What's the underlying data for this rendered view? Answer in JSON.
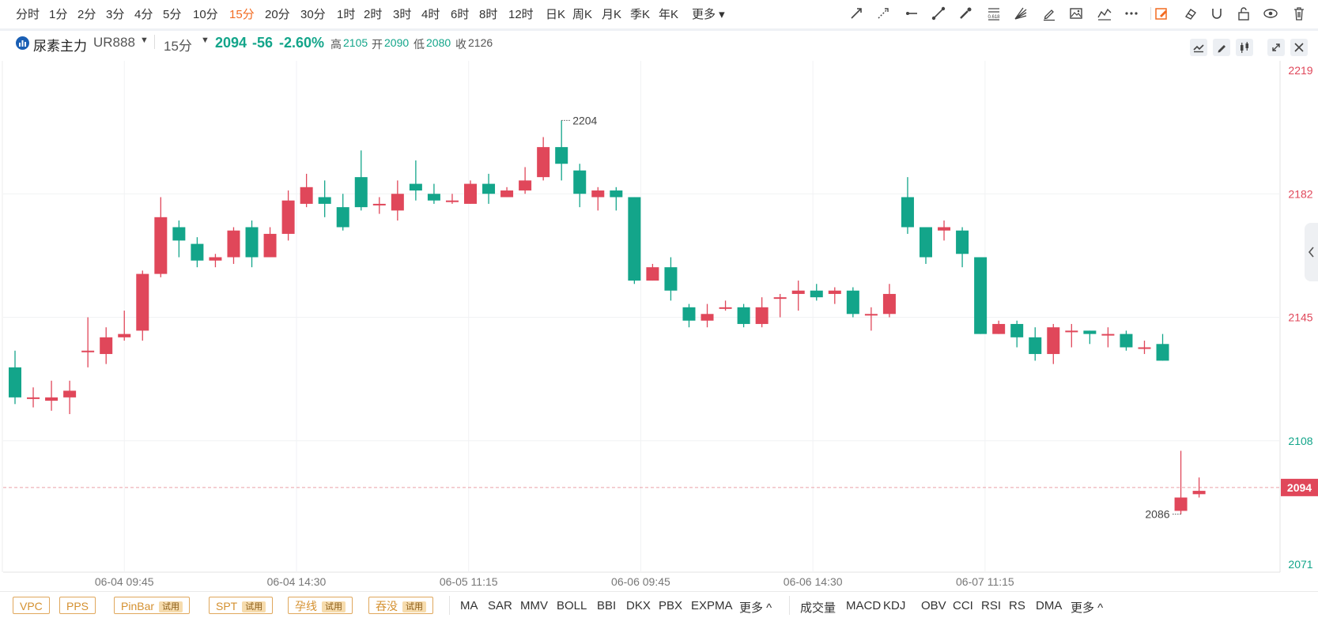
{
  "periods": [
    "分时",
    "1分",
    "2分",
    "3分",
    "4分",
    "5分",
    "10分",
    "15分",
    "20分",
    "30分",
    "1时",
    "2时",
    "3时",
    "4时",
    "6时",
    "8时",
    "12时",
    "日K",
    "周K",
    "月K",
    "季K",
    "年K",
    "更多"
  ],
  "active_period": "15分",
  "toolbar_icons": [
    "trend-line-icon",
    "dashed-ray-icon",
    "horizontal-ray-icon",
    "line-segment-icon",
    "brush-icon",
    "fibonacci-icon",
    "gann-fan-icon",
    "pencil-icon",
    "image-icon",
    "wave-icon",
    "more-tools-icon",
    "edit-mode-icon",
    "eraser-icon",
    "magnet-icon",
    "lock-icon",
    "eye-icon",
    "trash-icon"
  ],
  "fib_label": "0.618",
  "info": {
    "symbol_name": "尿素主力",
    "symbol_code": "UR888",
    "period": "15分",
    "price": "2094",
    "change": "-56",
    "change_pct": "-2.60%",
    "high_label": "高",
    "high": "2105",
    "open_label": "开",
    "open": "2090",
    "low_label": "低",
    "low": "2080",
    "close_label": "收",
    "close": "2126"
  },
  "colors": {
    "up": "#e0475a",
    "down": "#13a58a",
    "active": "#f26b21",
    "grid": "#f1f2f4"
  },
  "chart_data": {
    "type": "candlestick",
    "ylim": [
      2071,
      2219
    ],
    "y_ticks": [
      2219,
      2182,
      2145,
      2108,
      2071
    ],
    "x_tick_labels": [
      "06-04 09:45",
      "06-04 14:30",
      "06-05 11:15",
      "06-06 09:45",
      "06-06 14:30",
      "06-07 11:15"
    ],
    "current_price": 2094,
    "annotations": {
      "max": "2204",
      "min": "2086"
    },
    "candles": [
      [
        2130,
        2121,
        2135,
        2119
      ],
      [
        2121,
        2121,
        2124,
        2118
      ],
      [
        2120,
        2121,
        2126,
        2117
      ],
      [
        2121,
        2123,
        2126,
        2116
      ],
      [
        2135,
        2135,
        2145,
        2130
      ],
      [
        2134,
        2139,
        2142,
        2131
      ],
      [
        2139,
        2140,
        2147,
        2138
      ],
      [
        2141,
        2158,
        2159,
        2138
      ],
      [
        2158,
        2175,
        2181,
        2157
      ],
      [
        2172,
        2168,
        2174,
        2163
      ],
      [
        2167,
        2162,
        2169,
        2160
      ],
      [
        2162,
        2163,
        2164,
        2160
      ],
      [
        2163,
        2171,
        2172,
        2161
      ],
      [
        2172,
        2163,
        2174,
        2160
      ],
      [
        2163,
        2170,
        2172,
        2163
      ],
      [
        2170,
        2180,
        2183,
        2168
      ],
      [
        2179,
        2184,
        2188,
        2178
      ],
      [
        2181,
        2179,
        2186,
        2175
      ],
      [
        2178,
        2172,
        2182,
        2171
      ],
      [
        2187,
        2178,
        2195,
        2177
      ],
      [
        2179,
        2179,
        2181,
        2176
      ],
      [
        2177,
        2182,
        2186,
        2174
      ],
      [
        2185,
        2183,
        2192,
        2180
      ],
      [
        2182,
        2180,
        2185,
        2179
      ],
      [
        2180,
        2180,
        2182,
        2179
      ],
      [
        2179,
        2185,
        2186,
        2179
      ],
      [
        2185,
        2182,
        2188,
        2179
      ],
      [
        2181,
        2183,
        2184,
        2181
      ],
      [
        2183,
        2186,
        2190,
        2182
      ],
      [
        2187,
        2196,
        2199,
        2186
      ],
      [
        2196,
        2191,
        2204,
        2186
      ],
      [
        2189,
        2182,
        2191,
        2178
      ],
      [
        2181,
        2183,
        2184,
        2177
      ],
      [
        2183,
        2181,
        2184,
        2177
      ],
      [
        2181,
        2156,
        2181,
        2155
      ],
      [
        2156,
        2160,
        2161,
        2156
      ],
      [
        2160,
        2153,
        2163,
        2150
      ],
      [
        2148,
        2144,
        2149,
        2142
      ],
      [
        2144,
        2146,
        2149,
        2142
      ],
      [
        2148,
        2148,
        2150,
        2147
      ],
      [
        2148,
        2143,
        2149,
        2142
      ],
      [
        2143,
        2148,
        2151,
        2142
      ],
      [
        2151,
        2151,
        2152,
        2145
      ],
      [
        2152,
        2153,
        2156,
        2147
      ],
      [
        2153,
        2151,
        2155,
        2150
      ],
      [
        2152,
        2153,
        2154,
        2149
      ],
      [
        2153,
        2146,
        2154,
        2145
      ],
      [
        2146,
        2146,
        2148,
        2141
      ],
      [
        2146,
        2152,
        2155,
        2145
      ],
      [
        2181,
        2172,
        2187,
        2170
      ],
      [
        2172,
        2163,
        2172,
        2161
      ],
      [
        2171,
        2172,
        2174,
        2168
      ],
      [
        2171,
        2164,
        2172,
        2160
      ],
      [
        2163,
        2140,
        2163,
        2140
      ],
      [
        2140,
        2143,
        2144,
        2140
      ],
      [
        2143,
        2139,
        2144,
        2136
      ],
      [
        2139,
        2134,
        2142,
        2132
      ],
      [
        2134,
        2142,
        2143,
        2131
      ],
      [
        2141,
        2141,
        2143,
        2136
      ],
      [
        2141,
        2140,
        2141,
        2137
      ],
      [
        2140,
        2140,
        2142,
        2136
      ],
      [
        2140,
        2136,
        2141,
        2135
      ],
      [
        2136,
        2136,
        2138,
        2134
      ],
      [
        2137,
        2132,
        2140,
        2132
      ],
      [
        2087,
        2091,
        2105,
        2086
      ],
      [
        2092,
        2093,
        2097,
        2091
      ]
    ]
  },
  "indicators_main_special": [
    {
      "label": "VPC",
      "trial": false
    },
    {
      "label": "PPS",
      "trial": false
    },
    {
      "label": "PinBar",
      "trial": true
    },
    {
      "label": "SPT",
      "trial": true
    },
    {
      "label": "孕线",
      "trial": true
    },
    {
      "label": "吞没",
      "trial": true
    }
  ],
  "trial_label": "试用",
  "indicators_main": [
    "MA",
    "SAR",
    "MMV",
    "BOLL",
    "BBI",
    "DKX",
    "PBX",
    "EXPMA",
    "更多 ^"
  ],
  "indicators_sub": [
    "成交量",
    "MACD",
    "KDJ",
    "OBV",
    "CCI",
    "RSI",
    "RS",
    "DMA",
    "更多 ^"
  ]
}
